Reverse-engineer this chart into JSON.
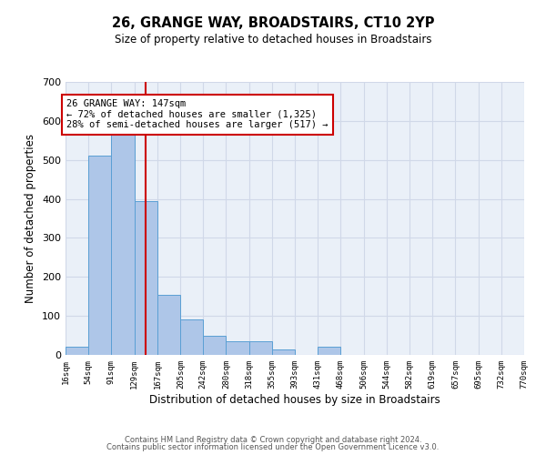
{
  "title": "26, GRANGE WAY, BROADSTAIRS, CT10 2YP",
  "subtitle": "Size of property relative to detached houses in Broadstairs",
  "xlabel": "Distribution of detached houses by size in Broadstairs",
  "ylabel": "Number of detached properties",
  "bar_edges": [
    16,
    54,
    91,
    129,
    167,
    205,
    242,
    280,
    318,
    355,
    393,
    431,
    468,
    506,
    544,
    582,
    619,
    657,
    695,
    732,
    770
  ],
  "bar_heights": [
    20,
    510,
    590,
    395,
    155,
    90,
    50,
    35,
    35,
    15,
    0,
    20,
    0,
    0,
    0,
    0,
    0,
    0,
    0,
    0
  ],
  "bar_color": "#aec6e8",
  "bar_edge_color": "#5a9fd4",
  "red_line_x": 147,
  "annotation_line1": "26 GRANGE WAY: 147sqm",
  "annotation_line2": "← 72% of detached houses are smaller (1,325)",
  "annotation_line3": "28% of semi-detached houses are larger (517) →",
  "annotation_box_color": "#ffffff",
  "annotation_box_edge_color": "#cc0000",
  "annotation_text_color": "#000000",
  "red_line_color": "#cc0000",
  "grid_color": "#d0d8e8",
  "background_color": "#eaf0f8",
  "footer_line1": "Contains HM Land Registry data © Crown copyright and database right 2024.",
  "footer_line2": "Contains public sector information licensed under the Open Government Licence v3.0.",
  "ylim": [
    0,
    700
  ],
  "yticks": [
    0,
    100,
    200,
    300,
    400,
    500,
    600,
    700
  ]
}
